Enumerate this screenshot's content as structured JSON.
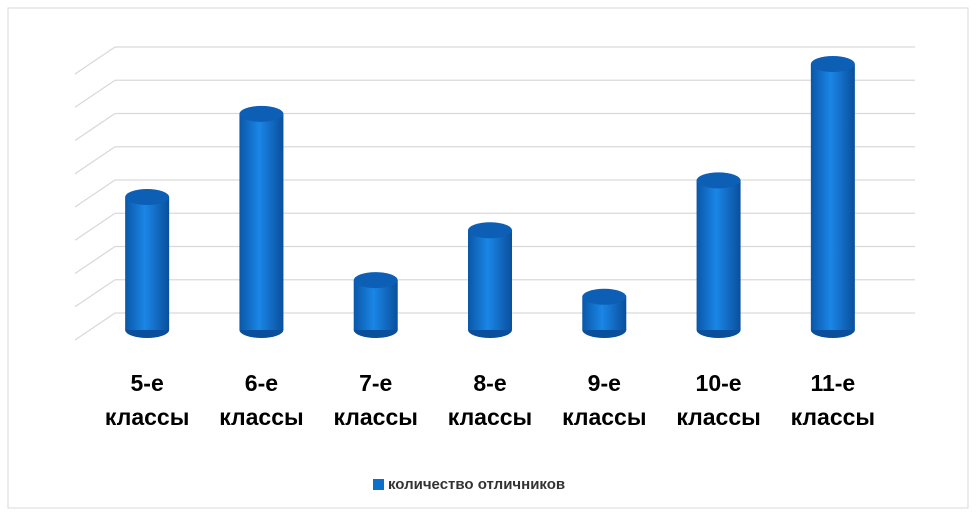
{
  "chart_data": {
    "type": "bar",
    "categories": [
      "5-е классы",
      "6-е классы",
      "7-е классы",
      "8-е классы",
      "9-е классы",
      "10-е классы",
      "11-е классы"
    ],
    "series": [
      {
        "name": "количество отличников",
        "color": "#0b6fcc",
        "values": [
          4,
          6.5,
          1.5,
          3,
          1,
          4.5,
          8
        ]
      }
    ],
    "ylim": [
      0,
      8
    ],
    "yticks": [
      0,
      1,
      2,
      3,
      4,
      5,
      6,
      7,
      8
    ],
    "grid": true,
    "legend": "bottom"
  }
}
